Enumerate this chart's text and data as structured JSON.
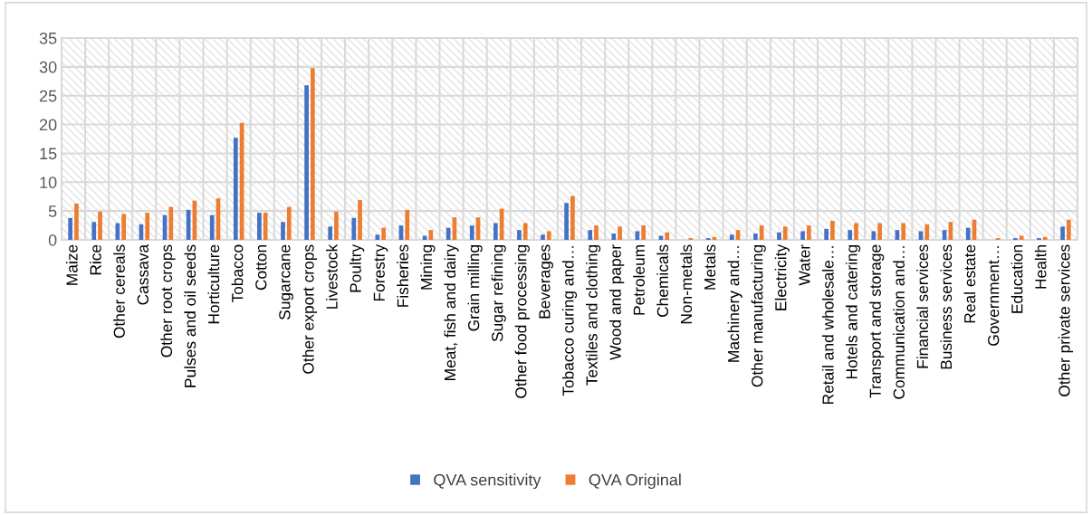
{
  "chart_data": {
    "type": "bar",
    "categories": [
      "Maize",
      "Rice",
      "Other cereals",
      "Cassava",
      "Other root crops",
      "Pulses and oil seeds",
      "Horticulture",
      "Tobacco",
      "Cotton",
      "Sugarcane",
      "Other export crops",
      "Livestock",
      "Poultry",
      "Forestry",
      "Fisheries",
      "Mining",
      "Meat, fish and dairy",
      "Grain milling",
      "Sugar refining",
      "Other food processing",
      "Beverages",
      "Tobacco curing and…",
      "Textiles and clothing",
      "Wood and paper",
      "Petroleum",
      "Chemicals",
      "Non-metals",
      "Metals",
      "Machinery and…",
      "Other manufacturing",
      "Electricity",
      "Water",
      "Retail and wholesale…",
      "Hotels and catering",
      "Transport and storage",
      "Communication and…",
      "Financial services",
      "Business services",
      "Real estate",
      "Government…",
      "Education",
      "Health",
      "Other private services"
    ],
    "series": [
      {
        "name": "QVA sensitivity",
        "color": "#4472c4",
        "values": [
          3.8,
          3.1,
          2.9,
          2.7,
          4.3,
          5.2,
          4.3,
          17.7,
          4.7,
          3.1,
          26.8,
          2.3,
          3.8,
          0.9,
          2.5,
          0.7,
          2.1,
          2.5,
          2.9,
          1.7,
          0.9,
          6.4,
          1.7,
          1.1,
          1.5,
          0.7,
          0,
          0.3,
          0.9,
          1.1,
          1.3,
          1.5,
          1.9,
          1.7,
          1.5,
          1.7,
          1.5,
          1.7,
          2.1,
          0,
          0.3,
          0.3,
          2.3
        ]
      },
      {
        "name": "QVA Original",
        "color": "#ed7d31",
        "values": [
          6.3,
          4.9,
          4.5,
          4.7,
          5.7,
          6.8,
          7.2,
          20.3,
          4.7,
          5.7,
          29.8,
          4.9,
          6.9,
          2.1,
          5.2,
          1.7,
          3.9,
          3.9,
          5.4,
          2.9,
          1.5,
          7.6,
          2.5,
          2.3,
          2.5,
          1.3,
          0.3,
          0.5,
          1.7,
          2.5,
          2.3,
          2.5,
          3.3,
          2.9,
          2.9,
          2.9,
          2.7,
          3.1,
          3.5,
          0.3,
          0.7,
          0.5,
          3.5
        ]
      }
    ],
    "ylim": [
      0,
      35
    ],
    "yticks": [
      0,
      5,
      10,
      15,
      20,
      25,
      30,
      35
    ],
    "grid": true,
    "legend": "bottom"
  }
}
